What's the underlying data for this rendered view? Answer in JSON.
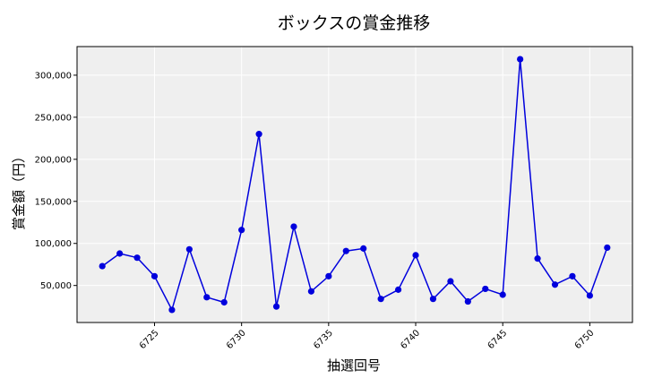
{
  "chart_data": {
    "type": "line",
    "title": "ボックスの賞金推移",
    "xlabel": "抽選回号",
    "ylabel": "賞金額（円）",
    "x": [
      6722,
      6723,
      6724,
      6725,
      6726,
      6727,
      6728,
      6729,
      6730,
      6731,
      6732,
      6733,
      6734,
      6735,
      6736,
      6737,
      6738,
      6739,
      6740,
      6741,
      6742,
      6743,
      6744,
      6745,
      6746,
      6747,
      6748,
      6749,
      6750,
      6751
    ],
    "y": [
      73000,
      88000,
      83000,
      61000,
      21000,
      93000,
      36000,
      30000,
      116000,
      230000,
      25000,
      120000,
      43000,
      61000,
      91000,
      94000,
      34000,
      45000,
      86000,
      34000,
      55000,
      31000,
      46000,
      39000,
      319000,
      82000,
      51000,
      61000,
      38000,
      95000
    ],
    "xticks": [
      "6725",
      "6730",
      "6735",
      "6740",
      "6745",
      "6750"
    ],
    "yticks": [
      "50,000",
      "100,000",
      "150,000",
      "200,000",
      "250,000",
      "300,000"
    ],
    "xlim": [
      6720.55,
      6752.45
    ],
    "ylim": [
      6000,
      334000
    ],
    "grid": true,
    "colors": {
      "line": "#0000dd",
      "plot_bg": "#efefef",
      "grid": "#ffffff"
    }
  }
}
